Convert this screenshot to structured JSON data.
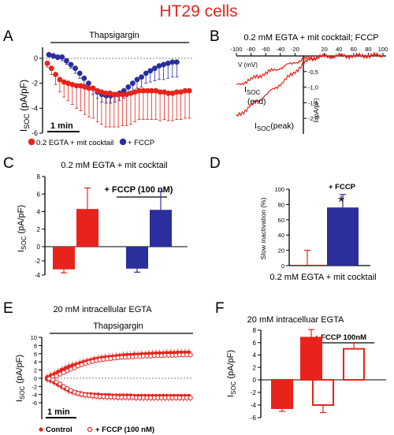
{
  "figure_title": "HT29 cells",
  "colors": {
    "red": "#e8231c",
    "blue": "#2b2f9e",
    "title": "#e8231c"
  },
  "chart_data": [
    {
      "panel": "A",
      "type": "scatter",
      "title": "Thapsigargin",
      "ylabel": "I_SOC (pA/pF)",
      "scale_bar": "1 min",
      "ylim": [
        -6,
        0.5
      ],
      "yticks": [
        "0",
        "-2",
        "-4",
        "-6"
      ],
      "series": [
        {
          "name": "0.2 EGTA + mit cocktail",
          "color": "#e8231c",
          "y": [
            -0.4,
            -0.8,
            -1.3,
            -1.7,
            -1.9,
            -2.0,
            -2.1,
            -2.2,
            -2.2,
            -2.3,
            -2.4,
            -2.4,
            -2.6,
            -2.7,
            -2.8,
            -2.8,
            -2.9,
            -2.9,
            -2.9,
            -2.9,
            -2.8,
            -2.7,
            -2.6,
            -2.6,
            -2.6,
            -2.6,
            -2.6,
            -2.7,
            -2.7,
            -2.8,
            -2.8,
            -2.7,
            -2.7,
            -2.6,
            -2.6
          ],
          "err": [
            0.3,
            0.5,
            0.8,
            1.0,
            1.2,
            1.4,
            1.6,
            1.8,
            2.0,
            2.2,
            2.3,
            2.4,
            2.5,
            2.6,
            2.7,
            2.7,
            2.6,
            2.6,
            2.5,
            2.5,
            2.5,
            2.4,
            2.3,
            2.3,
            2.3,
            2.3,
            2.3,
            2.3,
            2.2,
            2.2,
            2.2,
            2.2,
            2.2,
            2.2,
            2.2
          ]
        },
        {
          "name": "+ FCCP",
          "color": "#2b2f9e",
          "y": [
            0.3,
            0.2,
            0.1,
            0.1,
            -0.2,
            -0.5,
            -0.8,
            -1.2,
            -1.6,
            -2.0,
            -2.4,
            -2.7,
            -2.9,
            -3.0,
            -3.0,
            -2.9,
            -2.8,
            -2.6,
            -2.3,
            -2.0,
            -1.7,
            -1.5,
            -1.2,
            -1.0,
            -0.8,
            -0.6,
            -0.5,
            -0.4,
            -0.3,
            -0.3
          ],
          "err": [
            0.2,
            0.2,
            0.2,
            0.3,
            0.3,
            0.3,
            0.4,
            0.4,
            0.5,
            0.5,
            0.5,
            0.5,
            0.6,
            0.6,
            0.6,
            0.6,
            0.6,
            0.6,
            0.6,
            0.7,
            0.7,
            0.8,
            0.8,
            0.9,
            1.0,
            1.1,
            1.2,
            1.2,
            1.2,
            1.2
          ]
        }
      ]
    },
    {
      "panel": "B",
      "type": "line",
      "title": "0.2 mM EGTA + mit cocktail; FCCP",
      "xlabel": "V (mV)",
      "ylabel": "I (pA/pF)",
      "xlim": [
        -100,
        100
      ],
      "ylim": [
        -2.5,
        0
      ],
      "xticks": [
        "-100",
        "-80",
        "-60",
        "-40",
        "-20",
        "20",
        "40",
        "60",
        "80",
        "100"
      ],
      "yticks": [
        "-0,5",
        "-1,0",
        "-1,5",
        "-2,0"
      ],
      "series": [
        {
          "name": "ISOC(end)",
          "x": [
            -100,
            -80,
            -60,
            -40,
            -20,
            0,
            20,
            40,
            60,
            80,
            100
          ],
          "y": [
            -0.95,
            -0.75,
            -0.55,
            -0.38,
            -0.2,
            -0.06,
            -0.02,
            0.0,
            0.0,
            0.02,
            0.02
          ]
        },
        {
          "name": "ISOC(peak)",
          "x": [
            -100,
            -80,
            -60,
            -40,
            -20,
            0,
            20,
            40,
            60,
            80,
            100
          ],
          "y": [
            -1.95,
            -1.6,
            -1.25,
            -0.9,
            -0.5,
            -0.1,
            -0.03,
            0.0,
            0.0,
            0.0,
            0.0
          ]
        }
      ],
      "labels": {
        "end_main": "I",
        "end_sub": "SOC",
        "end_suffix": "(end)",
        "peak_main": "I",
        "peak_sub": "SOC",
        "peak_suffix": "(peak)"
      }
    },
    {
      "panel": "C",
      "type": "bar",
      "title": "0.2 mM EGTA + mit cocktail",
      "bracket_label": "+ FCCP (100 nM)",
      "ylabel": "I_SOC (pA/pF)",
      "ylim": [
        -4,
        8
      ],
      "yticks": [
        "8",
        "6",
        "4",
        "2",
        "0",
        "-2",
        "-4"
      ],
      "bars": [
        {
          "value": -3.2,
          "err": 0.5,
          "color": "#e8231c"
        },
        {
          "value": 4.3,
          "err": 2.4,
          "color": "#e8231c"
        },
        {
          "value": -3.1,
          "err": 0.5,
          "color": "#2b2f9e"
        },
        {
          "value": 4.2,
          "err": 2.1,
          "color": "#2b2f9e"
        }
      ]
    },
    {
      "panel": "D",
      "type": "bar",
      "xlabel": "0.2 mM EGTA + mit cocktail",
      "ylabel": "Slow inactivation (%)",
      "bar_label": "+ FCCP",
      "significance": "*",
      "ylim": [
        0,
        100
      ],
      "yticks": [
        "100",
        "80",
        "60",
        "40",
        "20",
        "0"
      ],
      "bars": [
        {
          "value": 1,
          "err": 19,
          "color": "#e8231c"
        },
        {
          "value": 76,
          "err": 17,
          "color": "#2b2f9e"
        }
      ]
    },
    {
      "panel": "E",
      "type": "scatter",
      "title": "20 mM intracellular EGTA",
      "subtitle": "Thapsigargin",
      "ylabel": "I_SOC (pA/pF)",
      "scale_bar": "1 min",
      "ylim": [
        -6,
        10
      ],
      "yticks": [
        "10",
        "8",
        "6",
        "4",
        "2",
        "0",
        "-2",
        "-4",
        "-6"
      ],
      "series": [
        {
          "name": "Control",
          "color": "#e8231c",
          "filled": true,
          "y_out": [
            0.2,
            0.6,
            1.0,
            1.5,
            2.0,
            2.4,
            2.8,
            3.1,
            3.3,
            3.6,
            3.9,
            4.1,
            4.3,
            4.6,
            4.7,
            4.9,
            5.0,
            5.1,
            5.2,
            5.3,
            5.4,
            5.5,
            5.6,
            5.6,
            5.7,
            5.7,
            5.8,
            5.8,
            5.9,
            5.9,
            6.0,
            6.0,
            6.0,
            6.1,
            6.1,
            6.1,
            6.2,
            6.2,
            6.2,
            6.2
          ],
          "y_in": [
            -0.2,
            -0.5,
            -1.0,
            -1.5,
            -2.0,
            -2.5,
            -3.0,
            -3.3,
            -3.5,
            -3.7,
            -3.9,
            -4.0,
            -4.0,
            -4.1,
            -4.1,
            -4.2,
            -4.2,
            -4.2,
            -4.3,
            -4.3,
            -4.3,
            -4.3,
            -4.3,
            -4.3,
            -4.4,
            -4.4,
            -4.4,
            -4.4,
            -4.4,
            -4.4,
            -4.4,
            -4.4,
            -4.4,
            -4.4,
            -4.4,
            -4.4,
            -4.4,
            -4.4,
            -4.4,
            -4.4
          ]
        },
        {
          "name": "+ FCCP (100 nM)",
          "color": "#e8231c",
          "filled": false,
          "y_out": [
            0.0,
            0.3,
            0.6,
            1.0,
            1.4,
            1.8,
            2.2,
            2.6,
            3.0,
            3.3,
            3.6,
            3.9,
            4.1,
            4.3,
            4.5,
            4.6,
            4.7,
            4.8,
            4.9,
            5.0,
            5.1,
            5.1,
            5.2,
            5.2,
            5.3,
            5.3,
            5.4,
            5.4,
            5.4,
            5.5,
            5.5,
            5.5,
            5.6,
            5.6,
            5.6,
            5.6,
            5.7,
            5.7,
            5.7,
            5.7
          ],
          "y_in": [
            -0.1,
            -0.4,
            -0.9,
            -1.4,
            -2.0,
            -2.5,
            -3.0,
            -3.4,
            -3.7,
            -3.9,
            -4.1,
            -4.2,
            -4.3,
            -4.4,
            -4.5,
            -4.5,
            -4.6,
            -4.6,
            -4.6,
            -4.7,
            -4.7,
            -4.7,
            -4.7,
            -4.7,
            -4.8,
            -4.8,
            -4.8,
            -4.8,
            -4.8,
            -4.8,
            -4.8,
            -4.8,
            -4.8,
            -4.8,
            -4.8,
            -4.8,
            -4.8,
            -4.8,
            -4.8,
            -4.8
          ]
        }
      ]
    },
    {
      "panel": "F",
      "type": "bar",
      "title": "20 mM intracelluar EGTA",
      "bracket_label": "+ FCCP 100nM",
      "ylabel": "I_SOC (pA/pF)",
      "ylim": [
        -6,
        8
      ],
      "yticks": [
        "8",
        "6",
        "4",
        "2",
        "0",
        "-2",
        "-4",
        "-6"
      ],
      "bars": [
        {
          "value": -4.5,
          "err": 0.5,
          "color": "#e8231c",
          "filled": true
        },
        {
          "value": 6.8,
          "err": 1.3,
          "color": "#e8231c",
          "filled": true
        },
        {
          "value": -4.0,
          "err": 1.2,
          "color": "#e8231c",
          "filled": false
        },
        {
          "value": 5.0,
          "err": 0.9,
          "color": "#e8231c",
          "filled": false
        }
      ]
    }
  ],
  "panel_labels": [
    "A",
    "B",
    "C",
    "D",
    "E",
    "F"
  ]
}
